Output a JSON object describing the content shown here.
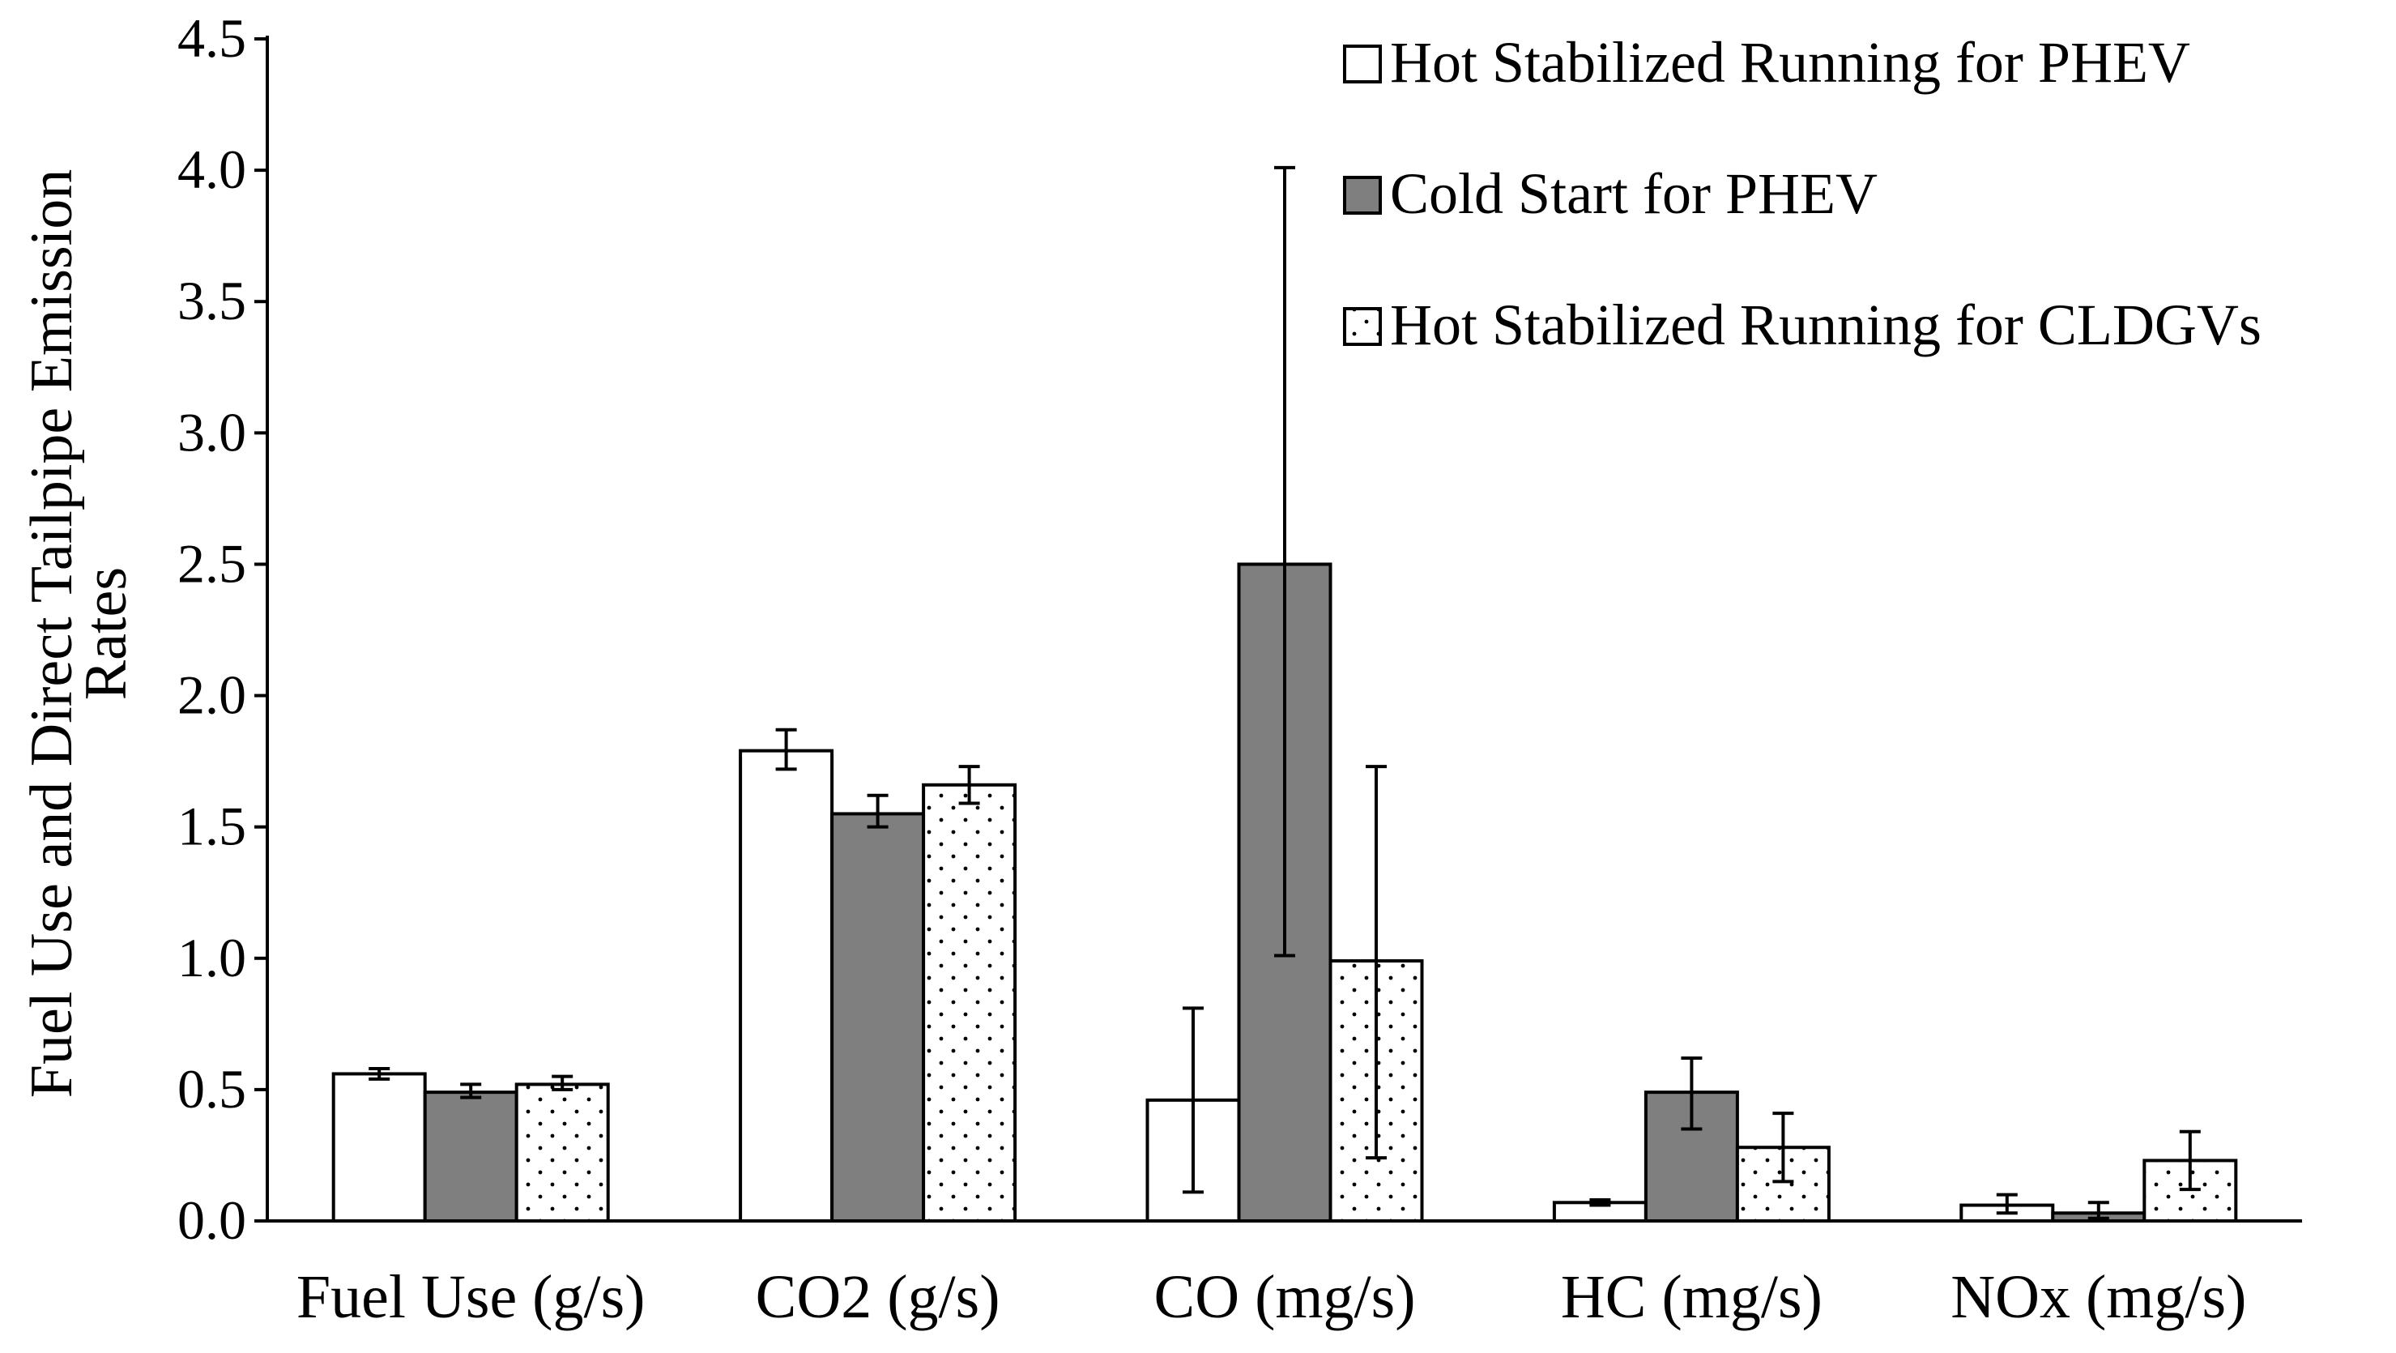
{
  "chart_data": {
    "type": "bar",
    "title": "",
    "xlabel": "",
    "ylabel_lines": [
      "Fuel Use and Direct Tailpipe Emission",
      "Rates"
    ],
    "ylim": [
      0,
      4.5
    ],
    "yticks": [
      "0.0",
      "0.5",
      "1.0",
      "1.5",
      "2.0",
      "2.5",
      "3.0",
      "3.5",
      "4.0",
      "4.5"
    ],
    "ytick_values": [
      0,
      0.5,
      1.0,
      1.5,
      2.0,
      2.5,
      3.0,
      3.5,
      4.0,
      4.5
    ],
    "grid": false,
    "legend_position": "top-right",
    "categories": [
      "Fuel Use (g/s)",
      "CO2 (g/s)",
      "CO (mg/s)",
      "HC (mg/s)",
      "NOx (mg/s)"
    ],
    "series": [
      {
        "name": "Hot Stabilized Running for PHEV",
        "pattern": "white",
        "values": [
          0.56,
          1.79,
          0.46,
          0.07,
          0.06
        ],
        "err_low": [
          0.54,
          1.72,
          0.11,
          0.06,
          0.03
        ],
        "err_high": [
          0.58,
          1.87,
          0.81,
          0.08,
          0.1
        ]
      },
      {
        "name": "Cold Start for PHEV",
        "pattern": "gray",
        "values": [
          0.49,
          1.55,
          2.5,
          0.49,
          0.03
        ],
        "err_low": [
          0.47,
          1.5,
          1.01,
          0.35,
          0.01
        ],
        "err_high": [
          0.52,
          1.62,
          4.01,
          0.62,
          0.07
        ]
      },
      {
        "name": "Hot Stabilized Running for CLDGVs",
        "pattern": "dotted",
        "values": [
          0.52,
          1.66,
          0.99,
          0.28,
          0.23
        ],
        "err_low": [
          0.5,
          1.59,
          0.24,
          0.15,
          0.12
        ],
        "err_high": [
          0.55,
          1.73,
          1.73,
          0.41,
          0.34
        ]
      }
    ],
    "colors": {
      "white": "#ffffff",
      "gray": "#7f7f7f",
      "dot": "#000000",
      "axis": "#000000"
    }
  }
}
